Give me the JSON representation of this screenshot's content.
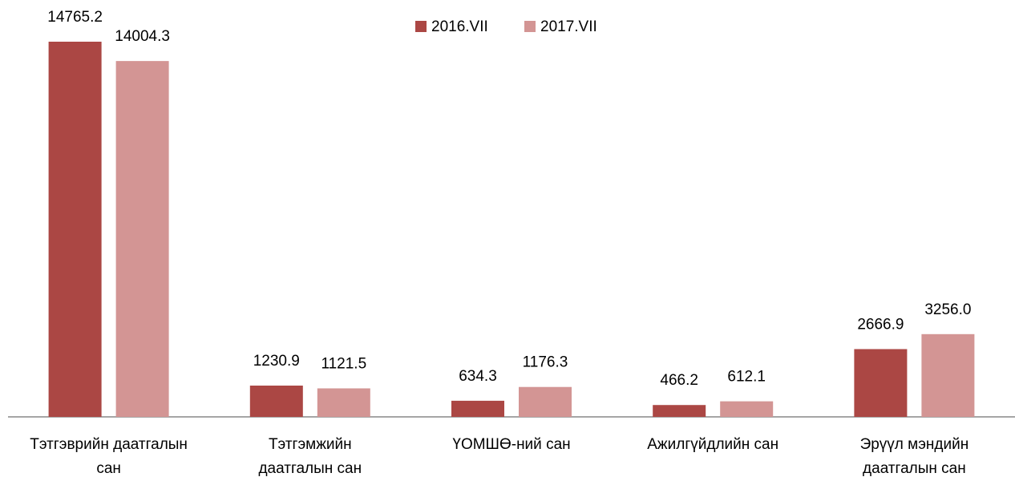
{
  "chart_data": {
    "type": "bar",
    "categories": [
      "Тэтгэврийн даатгалын\nсан",
      "Тэтгэмжийн\nдаатгалын сан",
      "ҮОМШӨ-ний сан",
      "Ажилгүйдлийн сан",
      "Эрүүл мэндийн\nдаатгалын сан"
    ],
    "series": [
      {
        "name": "2016.VII",
        "color": "#ab4744",
        "values": [
          14765.2,
          1230.9,
          634.3,
          466.2,
          2666.9
        ],
        "value_labels": [
          "14765.2",
          "1230.9",
          "634.3",
          "466.2",
          "2666.9"
        ]
      },
      {
        "name": "2017.VII",
        "color": "#d39594",
        "values": [
          14004.3,
          1121.5,
          1176.3,
          612.1,
          3256.0
        ],
        "value_labels": [
          "14004.3",
          "1121.5",
          "1176.3",
          "612.1",
          "3256.0"
        ]
      }
    ]
  }
}
